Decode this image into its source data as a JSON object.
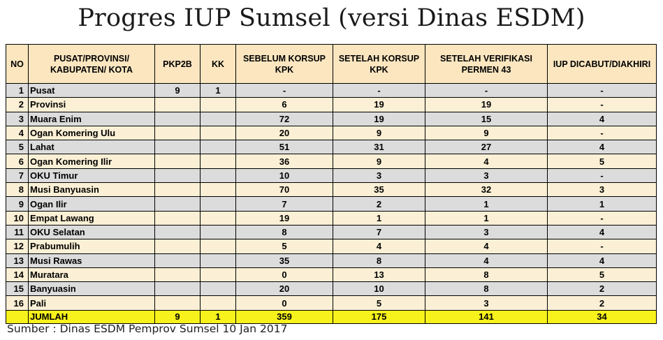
{
  "title": "Progres IUP Sumsel (versi Dinas ESDM)",
  "table": {
    "headers": {
      "no": "NO",
      "region": "PUSAT/PROVINSI/ KABUPATEN/ KOTA",
      "pkp2b": "PKP2B",
      "kk": "KK",
      "before": "SEBELUM KORSUP KPK",
      "after": "SETELAH KORSUP KPK",
      "verified": "SETELAH VERIFIKASI PERMEN 43",
      "revoked": "IUP DICABUT/DIAKHIRI"
    },
    "rows": [
      {
        "no": "1",
        "region": "Pusat",
        "pkp2b": "9",
        "kk": "1",
        "before": "-",
        "after": "-",
        "verified": "-",
        "revoked": "-"
      },
      {
        "no": "2",
        "region": "Provinsi",
        "pkp2b": "",
        "kk": "",
        "before": "6",
        "after": "19",
        "verified": "19",
        "revoked": "-"
      },
      {
        "no": "3",
        "region": "Muara Enim",
        "pkp2b": "",
        "kk": "",
        "before": "72",
        "after": "19",
        "verified": "15",
        "revoked": "4"
      },
      {
        "no": "4",
        "region": "Ogan Komering Ulu",
        "pkp2b": "",
        "kk": "",
        "before": "20",
        "after": "9",
        "verified": "9",
        "revoked": "-"
      },
      {
        "no": "5",
        "region": "Lahat",
        "pkp2b": "",
        "kk": "",
        "before": "51",
        "after": "31",
        "verified": "27",
        "revoked": "4"
      },
      {
        "no": "6",
        "region": "Ogan Komering Ilir",
        "pkp2b": "",
        "kk": "",
        "before": "36",
        "after": "9",
        "verified": "4",
        "revoked": "5"
      },
      {
        "no": "7",
        "region": "OKU Timur",
        "pkp2b": "",
        "kk": "",
        "before": "10",
        "after": "3",
        "verified": "3",
        "revoked": "-"
      },
      {
        "no": "8",
        "region": "Musi Banyuasin",
        "pkp2b": "",
        "kk": "",
        "before": "70",
        "after": "35",
        "verified": "32",
        "revoked": "3"
      },
      {
        "no": "9",
        "region": "Ogan Ilir",
        "pkp2b": "",
        "kk": "",
        "before": "7",
        "after": "2",
        "verified": "1",
        "revoked": "1"
      },
      {
        "no": "10",
        "region": "Empat Lawang",
        "pkp2b": "",
        "kk": "",
        "before": "19",
        "after": "1",
        "verified": "1",
        "revoked": "-"
      },
      {
        "no": "11",
        "region": "OKU Selatan",
        "pkp2b": "",
        "kk": "",
        "before": "8",
        "after": "7",
        "verified": "3",
        "revoked": "4"
      },
      {
        "no": "12",
        "region": "Prabumulih",
        "pkp2b": "",
        "kk": "",
        "before": "5",
        "after": "4",
        "verified": "4",
        "revoked": "-"
      },
      {
        "no": "13",
        "region": "Musi Rawas",
        "pkp2b": "",
        "kk": "",
        "before": "35",
        "after": "8",
        "verified": "4",
        "revoked": "4"
      },
      {
        "no": "14",
        "region": "Muratara",
        "pkp2b": "",
        "kk": "",
        "before": "0",
        "after": "13",
        "verified": "8",
        "revoked": "5"
      },
      {
        "no": "15",
        "region": "Banyuasin",
        "pkp2b": "",
        "kk": "",
        "before": "20",
        "after": "10",
        "verified": "8",
        "revoked": "2"
      },
      {
        "no": "16",
        "region": "Pali",
        "pkp2b": "",
        "kk": "",
        "before": "0",
        "after": "5",
        "verified": "3",
        "revoked": "2"
      }
    ],
    "total": {
      "no": "",
      "region": "JUMLAH",
      "pkp2b": "9",
      "kk": "1",
      "before": "359",
      "after": "175",
      "verified": "141",
      "revoked": "34"
    }
  },
  "source": "Sumber : Dinas ESDM Pemprov Sumsel 10 Jan 2017",
  "colors": {
    "header_bg": "#fbe6c0",
    "row_gray": "#dcdcdc",
    "row_cream": "#fbf0d5",
    "total_bg": "#f7f21c"
  }
}
